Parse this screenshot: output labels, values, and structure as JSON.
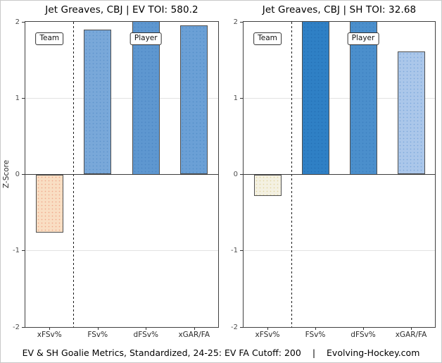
{
  "caption": {
    "text": "EV & SH Goalie Metrics, Standardized, 24-25: EV FA Cutoff: 200",
    "separator": "|",
    "site": "Evolving-Hockey.com"
  },
  "colors": {
    "panel_border": "#404040",
    "bar_stroke": "#4f4f4f",
    "gridline": "#e2e2e2",
    "zero_line": "#3d3d3d",
    "divider": "#1a1a1a",
    "tick_text": "#4d4d4d"
  },
  "chart_data": [
    {
      "type": "bar",
      "title": "Jet Greaves, CBJ | EV TOI: 580.2",
      "ylabel": "Z-Score",
      "ylim": [
        -2,
        2
      ],
      "yticks": [
        2,
        1,
        0,
        -1,
        -2
      ],
      "grid": "horizontal at 1 and -1, dark zero line",
      "legend_position": "none",
      "categories": [
        "xFSv%",
        "FSv%",
        "dFSv%",
        "xGAR/FA"
      ],
      "values": [
        -0.76,
        1.9,
        2.05,
        1.95
      ],
      "clipped_at_top": [
        false,
        false,
        true,
        false
      ],
      "bar_colors": [
        "#f9dec3",
        "#79a8d9",
        "#5e97d0",
        "#6ba0d6"
      ],
      "bar_dot_colors": [
        "#f0a98c",
        "#5d94cc",
        "#4c87c4",
        "#548fc9"
      ],
      "annotations": [
        {
          "label": "Team",
          "slot": 0
        },
        {
          "label": "Player",
          "slot": 2
        }
      ],
      "divider_after_slot": 0
    },
    {
      "type": "bar",
      "title": "Jet Greaves, CBJ | SH TOI: 32.68",
      "ylabel": "",
      "ylim": [
        -2,
        2
      ],
      "yticks": [
        2,
        1,
        0,
        -1,
        -2
      ],
      "grid": "horizontal at 1 and -1, dark zero line",
      "legend_position": "none",
      "categories": [
        "xFSv%",
        "FSv%",
        "dFSv%",
        "xGAR/FA"
      ],
      "values": [
        -0.28,
        2.2,
        2.2,
        1.61
      ],
      "clipped_at_top": [
        false,
        true,
        true,
        false
      ],
      "bar_colors": [
        "#f4f1e2",
        "#2f80c5",
        "#4b8fcc",
        "#abc7ea"
      ],
      "bar_dot_colors": [
        "#e3d6a4",
        "#2470b6",
        "#3c80c0",
        "#7fa9dd"
      ],
      "annotations": [
        {
          "label": "Team",
          "slot": 0
        },
        {
          "label": "Player",
          "slot": 2
        }
      ],
      "divider_after_slot": 0
    }
  ]
}
